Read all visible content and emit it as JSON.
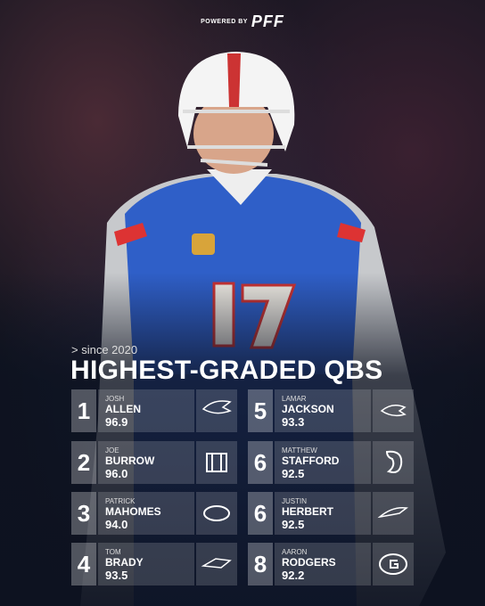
{
  "header": {
    "powered_by": "POWERED BY",
    "brand": "PFF"
  },
  "subtitle": "> since 2020",
  "title": "HIGHEST-GRADED QBS",
  "players": [
    {
      "rank": "1",
      "first": "JOSH",
      "last": "ALLEN",
      "grade": "96.9"
    },
    {
      "rank": "2",
      "first": "JOE",
      "last": "BURROW",
      "grade": "96.0"
    },
    {
      "rank": "3",
      "first": "PATRICK",
      "last": "MAHOMES",
      "grade": "94.0"
    },
    {
      "rank": "4",
      "first": "TOM",
      "last": "BRADY",
      "grade": "93.5"
    },
    {
      "rank": "5",
      "first": "LAMAR",
      "last": "JACKSON",
      "grade": "93.3"
    },
    {
      "rank": "6",
      "first": "MATTHEW",
      "last": "STAFFORD",
      "grade": "92.5"
    },
    {
      "rank": "6",
      "first": "JUSTIN",
      "last": "HERBERT",
      "grade": "92.5"
    },
    {
      "rank": "8",
      "first": "AARON",
      "last": "RODGERS",
      "grade": "92.2"
    }
  ]
}
